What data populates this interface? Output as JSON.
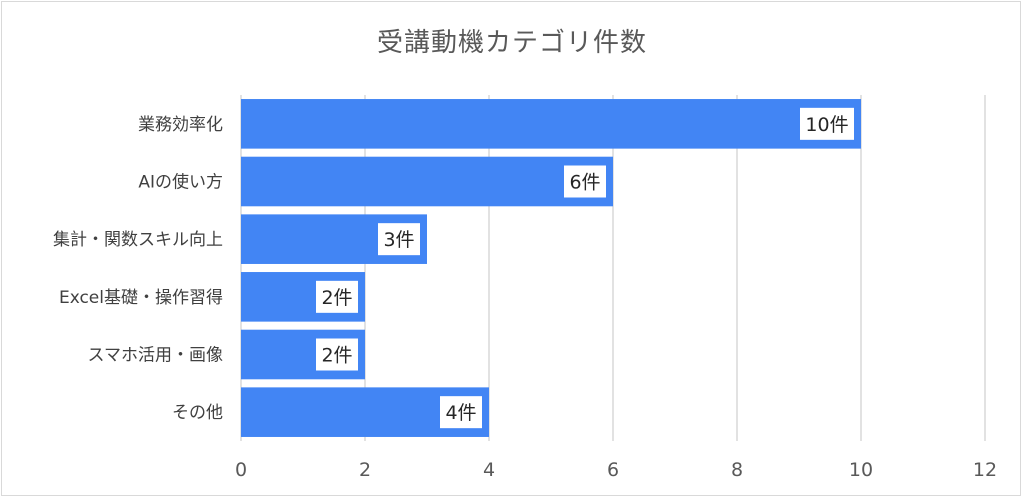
{
  "chart_data": {
    "type": "bar",
    "orientation": "horizontal",
    "title": "受講動機カテゴリ件数",
    "categories": [
      "業務効率化",
      "AIの使い方",
      "集計・関数スキル向上",
      "Excel基礎・操作習得",
      "スマホ活用・画像",
      "その他"
    ],
    "values": [
      10,
      6,
      3,
      2,
      2,
      4
    ],
    "data_labels": [
      "10件",
      "6件",
      "3件",
      "2件",
      "2件",
      "4件"
    ],
    "xlim": [
      0,
      12
    ],
    "xticks": [
      "0",
      "2",
      "4",
      "6",
      "8",
      "10",
      "12"
    ],
    "grid": "vertical",
    "legend": "none",
    "bar_color": "#4285f4",
    "grid_color": "#d9d9d9",
    "label_box_color": "#ffffff"
  }
}
